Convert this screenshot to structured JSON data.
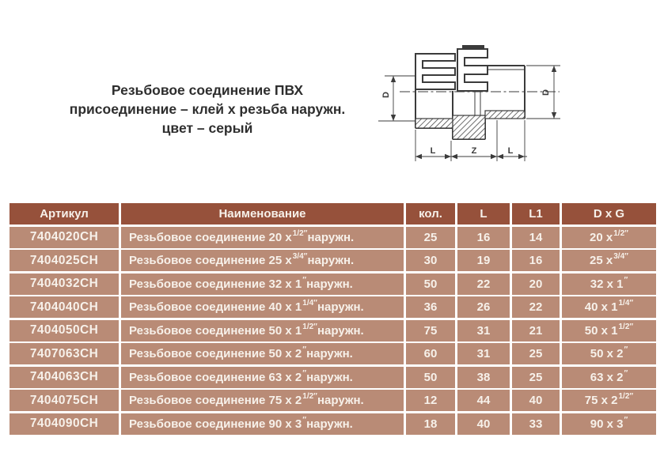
{
  "page": {
    "title_lines": [
      "Резьбовое соединение ПВХ",
      "присоединение – клей х резьба наружн.",
      "цвет – серый"
    ]
  },
  "diagram": {
    "labels": {
      "d_left": "D",
      "d_right": "D",
      "len_left": "L",
      "len_mid": "Z",
      "len_right": "L"
    }
  },
  "table": {
    "headers": [
      "Артикул",
      "Наименование",
      "кол.",
      "L",
      "L1",
      "D x G"
    ],
    "rows": [
      {
        "article": "7404020CH",
        "name": {
          "pre": "Резьбовое соединение 20 x ",
          "sup": "1/2″",
          "post": " наружн."
        },
        "qty": "25",
        "L": "16",
        "L1": "14",
        "dxg": {
          "pre": "20 x ",
          "sup": "1/2″",
          "post": ""
        }
      },
      {
        "article": "7404025CH",
        "name": {
          "pre": "Резьбовое соединение 25 x ",
          "sup": "3/4″",
          "post": " наружн."
        },
        "qty": "30",
        "L": "19",
        "L1": "16",
        "dxg": {
          "pre": "25 x ",
          "sup": "3/4″",
          "post": ""
        }
      },
      {
        "article": "7404032CH",
        "name": {
          "pre": "Резьбовое соединение 32 x 1",
          "sup": "″",
          "post": " наружн."
        },
        "qty": "50",
        "L": "22",
        "L1": "20",
        "dxg": {
          "pre": "32 x 1",
          "sup": "″",
          "post": ""
        }
      },
      {
        "article": "7404040CH",
        "name": {
          "pre": "Резьбовое соединение 40 x 1",
          "sup": "1/4″",
          "post": " наружн."
        },
        "qty": "36",
        "L": "26",
        "L1": "22",
        "dxg": {
          "pre": "40 x 1",
          "sup": "1/4″",
          "post": ""
        }
      },
      {
        "article": "7404050CH",
        "name": {
          "pre": "Резьбовое соединение 50 x 1",
          "sup": "1/2″",
          "post": " наружн."
        },
        "qty": "75",
        "L": "31",
        "L1": "21",
        "dxg": {
          "pre": "50 x 1",
          "sup": "1/2″",
          "post": ""
        }
      },
      {
        "article": "7407063CH",
        "name": {
          "pre": "Резьбовое соединение 50 x 2",
          "sup": "″",
          "post": " наружн."
        },
        "qty": "60",
        "L": "31",
        "L1": "25",
        "dxg": {
          "pre": "50 x 2",
          "sup": "″",
          "post": ""
        }
      },
      {
        "article": "7404063CH",
        "name": {
          "pre": "Резьбовое соединение 63 x 2",
          "sup": "″",
          "post": " наружн."
        },
        "qty": "50",
        "L": "38",
        "L1": "25",
        "dxg": {
          "pre": "63 x 2",
          "sup": "″",
          "post": ""
        }
      },
      {
        "article": "7404075CH",
        "name": {
          "pre": "Резьбовое соединение 75 x 2",
          "sup": "1/2″",
          "post": " наружн."
        },
        "qty": "12",
        "L": "44",
        "L1": "40",
        "dxg": {
          "pre": "75 x 2",
          "sup": "1/2″",
          "post": ""
        }
      },
      {
        "article": "7404090CH",
        "name": {
          "pre": "Резьбовое соединение 90 x 3",
          "sup": "″",
          "post": " наружн."
        },
        "qty": "18",
        "L": "40",
        "L1": "33",
        "dxg": {
          "pre": "90 x 3",
          "sup": "″",
          "post": ""
        }
      }
    ]
  },
  "colors": {
    "header_bg": "#96513b",
    "row_bg": "#b98b76",
    "cell_text": "#f7f1ea",
    "line": "#3b3b3b"
  }
}
